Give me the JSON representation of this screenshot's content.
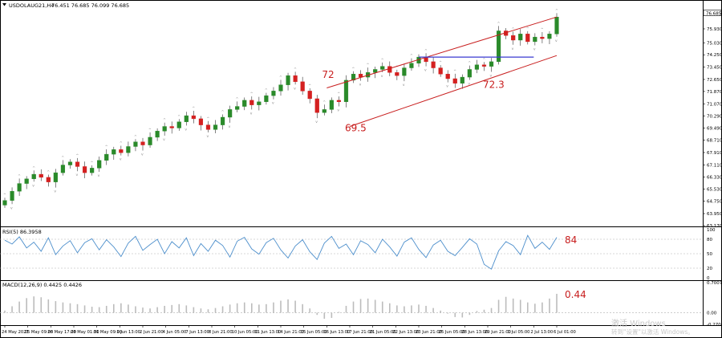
{
  "window": {
    "symbol_header": "USDOLAUG21,H4",
    "ohlc_header": "76.451 76.685 76.099 76.685",
    "rsi_header": "RSI(5) 86.3958",
    "macd_header": "MACD(12,26,9) 0.4425 0.4426"
  },
  "watermark": {
    "line1": "激活 Windows",
    "line2": "转到\"设置\"以激活 Windows。"
  },
  "colors": {
    "up_candle": "#2a8a2a",
    "down_candle": "#d42020",
    "channel": "#c81e1e",
    "horizontal_level": "#3a3ad0",
    "rsi_line": "#4d8fcc",
    "macd_histogram": "#bcbcbc",
    "annotation": "#c81e1e",
    "grid": "#b0b0b0"
  },
  "chart_data": [
    {
      "type": "candlestick",
      "panel": "price",
      "ylim": [
        63.17,
        76.97
      ],
      "y_ticks": [
        "76.685",
        "75.930",
        "75.030",
        "74.250",
        "73.450",
        "72.650",
        "71.870",
        "71.070",
        "70.290",
        "69.490",
        "68.710",
        "67.910",
        "67.110",
        "66.330",
        "65.530",
        "64.750",
        "63.950",
        "63.170"
      ],
      "current_price_label": "76.685",
      "x_labels": [
        "24 May 2021",
        "25 May 09:00",
        "26 May 17:00",
        "28 May 01:00",
        "31 May 09:00",
        "1 Jun 13:00",
        "2 Jun 21:00",
        "4 Jun 05:00",
        "7 Jun 13:00",
        "8 Jun 21:00",
        "10 Jun 05:00",
        "11 Jun 13:00",
        "14 Jun 21:00",
        "15 Jun 05:00",
        "16 Jun 13:00",
        "17 Jun 21:00",
        "21 Jun 05:00",
        "22 Jun 13:00",
        "23 Jun 21:00",
        "25 Jun 05:00",
        "28 Jun 13:00",
        "29 Jun 21:00",
        "1 Jul 05:00",
        "2 Jul 13:00",
        "6 Jul 01:00"
      ],
      "close_series_approx": [
        64.8,
        65.4,
        65.9,
        66.2,
        66.5,
        66.3,
        66.0,
        66.6,
        67.1,
        67.3,
        67.0,
        66.6,
        66.9,
        67.4,
        67.8,
        68.1,
        67.9,
        68.3,
        68.6,
        68.4,
        68.9,
        69.3,
        69.6,
        69.5,
        69.9,
        70.3,
        70.1,
        69.7,
        69.4,
        69.7,
        70.2,
        70.7,
        70.9,
        71.3,
        71.0,
        71.2,
        71.6,
        71.9,
        72.3,
        72.9,
        72.5,
        71.9,
        71.4,
        70.5,
        70.7,
        71.3,
        71.2,
        72.6,
        73.0,
        72.8,
        73.1,
        73.3,
        73.5,
        73.1,
        72.9,
        73.4,
        73.7,
        74.1,
        73.8,
        73.4,
        73.0,
        72.7,
        72.4,
        72.8,
        73.3,
        73.6,
        73.5,
        73.8,
        75.8,
        75.5,
        75.2,
        75.6,
        75.1,
        75.4,
        75.3,
        75.6,
        76.7
      ],
      "annotations": [
        {
          "text": "72",
          "x_label": "16 Jun 13:00",
          "y": 72.95
        },
        {
          "text": "69.5",
          "x_label": "17 Jun 21:00",
          "y": 69.5
        },
        {
          "text": "72.3",
          "x_label": "29 Jun 21:00",
          "y": 72.3
        }
      ],
      "trendlines": [
        {
          "name": "channel-upper",
          "from": {
            "x_label": "16 Jun 13:00",
            "y": 72.1
          },
          "to": {
            "x_label": "6 Jul 01:00",
            "y": 76.7
          }
        },
        {
          "name": "channel-lower",
          "from": {
            "x_label": "17 Jun 21:00",
            "y": 69.6
          },
          "to": {
            "x_label": "6 Jul 01:00",
            "y": 74.2
          }
        },
        {
          "name": "horizontal-level",
          "from": {
            "x_label": "23 Jun 21:00",
            "y": 74.1
          },
          "to": {
            "x_label": "2 Jul 13:00",
            "y": 74.1
          }
        }
      ]
    },
    {
      "type": "line",
      "panel": "rsi",
      "title": "RSI(5) 86.3958",
      "ylim": [
        0,
        100
      ],
      "y_ticks": [
        "100",
        "80",
        "50",
        "20",
        "0"
      ],
      "annotation": "84",
      "values": [
        78,
        70,
        85,
        62,
        74,
        55,
        83,
        48,
        66,
        77,
        52,
        73,
        81,
        58,
        79,
        64,
        44,
        72,
        86,
        57,
        69,
        80,
        50,
        75,
        62,
        83,
        46,
        71,
        55,
        78,
        67,
        43,
        76,
        84,
        60,
        49,
        73,
        82,
        58,
        41,
        66,
        79,
        54,
        38,
        72,
        86,
        61,
        70,
        48,
        77,
        69,
        52,
        80,
        64,
        45,
        74,
        83,
        59,
        42,
        68,
        78,
        55,
        46,
        63,
        81,
        70,
        28,
        18,
        56,
        75,
        67,
        48,
        88,
        61,
        74,
        59,
        84
      ]
    },
    {
      "type": "bar",
      "panel": "macd",
      "title": "MACD(12,26,9) 0.4425 0.4426",
      "ylim": [
        -0.2701,
        0.7007
      ],
      "y_ticks": [
        "0.7007",
        "0.00",
        "-0.2701"
      ],
      "annotation": "0.44",
      "values": [
        0.05,
        0.15,
        0.26,
        0.34,
        0.38,
        0.36,
        0.31,
        0.27,
        0.24,
        0.22,
        0.2,
        0.17,
        0.14,
        0.13,
        0.16,
        0.2,
        0.22,
        0.19,
        0.15,
        0.12,
        0.1,
        0.13,
        0.16,
        0.18,
        0.2,
        0.17,
        0.13,
        0.1,
        0.08,
        0.11,
        0.15,
        0.19,
        0.22,
        0.24,
        0.22,
        0.19,
        0.2,
        0.24,
        0.28,
        0.31,
        0.28,
        0.2,
        0.1,
        -0.05,
        -0.14,
        -0.12,
        0.02,
        0.16,
        0.26,
        0.32,
        0.33,
        0.3,
        0.26,
        0.22,
        0.17,
        0.15,
        0.17,
        0.19,
        0.16,
        0.11,
        0.05,
        -0.02,
        -0.1,
        -0.11,
        -0.05,
        0.04,
        0.07,
        0.11,
        0.3,
        0.37,
        0.33,
        0.3,
        0.24,
        0.21,
        0.24,
        0.33,
        0.44
      ]
    }
  ]
}
